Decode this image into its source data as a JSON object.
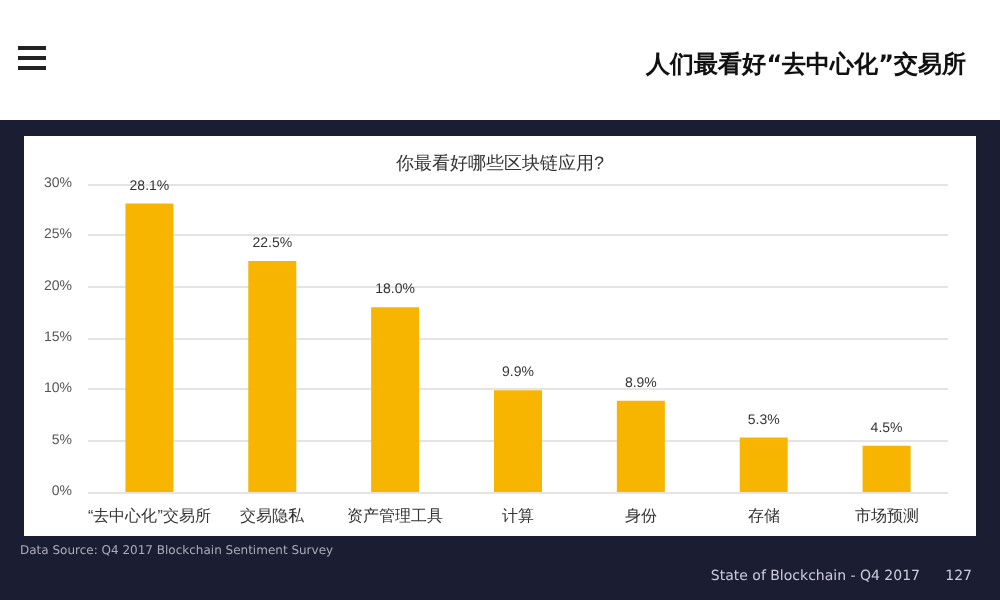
{
  "chart_data": {
    "type": "bar",
    "title": "人们最看好“去中心化”交易所",
    "subtitle": "你最看好哪些区块链应用?",
    "categories": [
      "“去中心化”交易所",
      "交易隐私",
      "资产管理工具",
      "计算",
      "身份",
      "存储",
      "市场预测"
    ],
    "values": [
      28.1,
      22.5,
      18.0,
      9.9,
      8.9,
      5.3,
      4.5
    ],
    "value_labels": [
      "28.1%",
      "22.5%",
      "18.0%",
      "9.9%",
      "8.9%",
      "5.3%",
      "4.5%"
    ],
    "color": "#f7b500",
    "ylim": [
      0,
      30
    ],
    "yticks": [
      {
        "value": 0,
        "label": "0%"
      },
      {
        "value": 5,
        "label": "5%"
      },
      {
        "value": 10,
        "label": "10%"
      },
      {
        "value": 15,
        "label": "15%"
      },
      {
        "value": 20,
        "label": "20%"
      },
      {
        "value": 25,
        "label": "25%"
      },
      {
        "value": 30,
        "label": "30%"
      }
    ],
    "grid": "y",
    "annotations": [
      "Data Source: Q4 2017 Blockchain Sentiment Survey",
      "State of Blockchain - Q4 2017",
      "127"
    ]
  }
}
